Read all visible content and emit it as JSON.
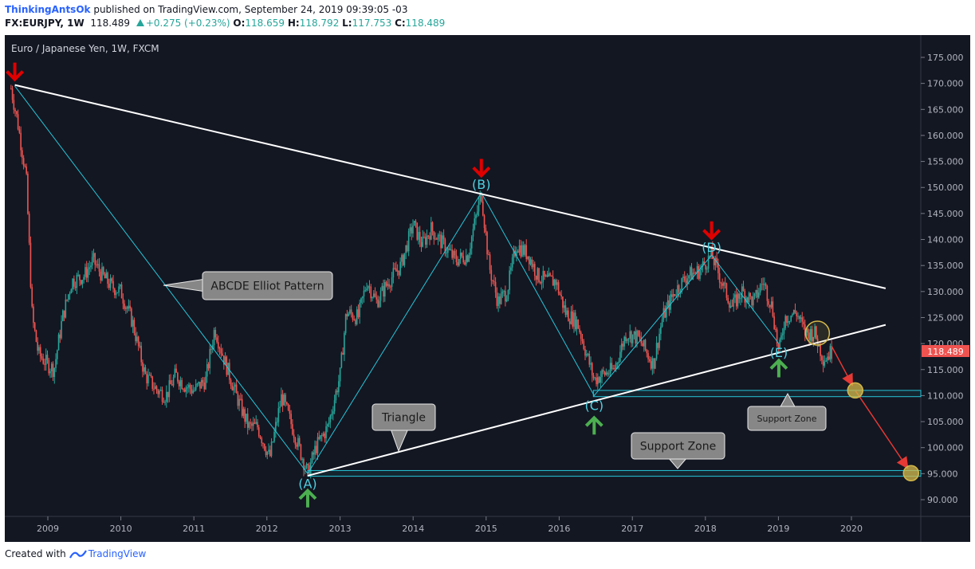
{
  "header": {
    "author": "ThinkingAntsOk",
    "published": " published on TradingView.com, September 24, 2019 09:39:05 -03",
    "symbol": "FX:EURJPY, 1W",
    "last": "118.489",
    "change": "+0.275 (+0.23%)",
    "o_label": "O:",
    "o_value": "118.659",
    "h_label": "H:",
    "h_value": "118.792",
    "l_label": "L:",
    "l_value": "117.753",
    "c_label": "C:",
    "c_value": "118.489"
  },
  "footer": {
    "created_with": "Created with",
    "brand": "TradingView"
  },
  "colors": {
    "background": "#131722",
    "candle_up": "#26a69a",
    "candle_down": "#ef5350",
    "trendline": "#ffffff",
    "pattern_line": "#26c6da",
    "arrow_down": "#e00000",
    "arrow_up": "#4caf50",
    "projection": "#e53935",
    "circle": "#d4b84a"
  },
  "chart_data": {
    "type": "candlestick",
    "title": "Euro / Japanese Yen, 1W, FXCM",
    "ylim": [
      86,
      179
    ],
    "y_ticks": [
      "175.000",
      "170.000",
      "165.000",
      "160.000",
      "155.000",
      "150.000",
      "145.000",
      "140.000",
      "135.000",
      "130.000",
      "125.000",
      "120.000",
      "115.000",
      "110.000",
      "105.000",
      "100.000",
      "95.000",
      "90.000"
    ],
    "x_ticks": [
      "2009",
      "2010",
      "2011",
      "2012",
      "2013",
      "2014",
      "2015",
      "2016",
      "2017",
      "2018",
      "2019",
      "2020"
    ],
    "last_price_label": "118.489",
    "price_path": [
      [
        "2008-07-01",
        169
      ],
      [
        "2008-08-01",
        163
      ],
      [
        "2008-09-15",
        152
      ],
      [
        "2008-10-15",
        125
      ],
      [
        "2008-11-15",
        118
      ],
      [
        "2008-12-31",
        116
      ],
      [
        "2009-02-01",
        115
      ],
      [
        "2009-03-15",
        125
      ],
      [
        "2009-05-01",
        132
      ],
      [
        "2009-07-01",
        133
      ],
      [
        "2009-08-15",
        136
      ],
      [
        "2009-10-01",
        133
      ],
      [
        "2009-11-15",
        131
      ],
      [
        "2010-01-01",
        130
      ],
      [
        "2010-03-01",
        124
      ],
      [
        "2010-05-01",
        114
      ],
      [
        "2010-07-01",
        111
      ],
      [
        "2010-08-15",
        110
      ],
      [
        "2010-10-01",
        114
      ],
      [
        "2010-11-15",
        112
      ],
      [
        "2011-01-01",
        111
      ],
      [
        "2011-03-01",
        113
      ],
      [
        "2011-04-15",
        123
      ],
      [
        "2011-06-01",
        117
      ],
      [
        "2011-08-01",
        110
      ],
      [
        "2011-10-01",
        104
      ],
      [
        "2011-11-15",
        104
      ],
      [
        "2012-01-15",
        98
      ],
      [
        "2012-03-15",
        110
      ],
      [
        "2012-05-15",
        103
      ],
      [
        "2012-07-23",
        95
      ],
      [
        "2012-09-01",
        100
      ],
      [
        "2012-11-01",
        104
      ],
      [
        "2013-01-01",
        114
      ],
      [
        "2013-02-01",
        126
      ],
      [
        "2013-04-01",
        125
      ],
      [
        "2013-05-15",
        132
      ],
      [
        "2013-07-01",
        128
      ],
      [
        "2013-09-01",
        132
      ],
      [
        "2013-11-01",
        135
      ],
      [
        "2014-01-01",
        143
      ],
      [
        "2014-02-15",
        139
      ],
      [
        "2014-04-01",
        142
      ],
      [
        "2014-06-01",
        139
      ],
      [
        "2014-08-01",
        136
      ],
      [
        "2014-10-01",
        137
      ],
      [
        "2014-12-08",
        149
      ],
      [
        "2015-01-15",
        135
      ],
      [
        "2015-03-01",
        128
      ],
      [
        "2015-04-15",
        130
      ],
      [
        "2015-06-01",
        139
      ],
      [
        "2015-08-01",
        137
      ],
      [
        "2015-09-15",
        133
      ],
      [
        "2015-11-01",
        132
      ],
      [
        "2015-12-15",
        132
      ],
      [
        "2016-02-01",
        126
      ],
      [
        "2016-04-01",
        124
      ],
      [
        "2016-06-24",
        113
      ],
      [
        "2016-08-01",
        114
      ],
      [
        "2016-10-01",
        115
      ],
      [
        "2016-12-01",
        122
      ],
      [
        "2017-02-01",
        121
      ],
      [
        "2017-04-15",
        116
      ],
      [
        "2017-06-01",
        125
      ],
      [
        "2017-08-01",
        130
      ],
      [
        "2017-10-01",
        133
      ],
      [
        "2017-12-01",
        134
      ],
      [
        "2018-02-01",
        137
      ],
      [
        "2018-04-01",
        131
      ],
      [
        "2018-05-15",
        127
      ],
      [
        "2018-07-01",
        130
      ],
      [
        "2018-09-01",
        128
      ],
      [
        "2018-10-15",
        132
      ],
      [
        "2018-12-01",
        127
      ],
      [
        "2019-01-03",
        118
      ],
      [
        "2019-02-01",
        125
      ],
      [
        "2019-04-01",
        126
      ],
      [
        "2019-05-15",
        122
      ],
      [
        "2019-07-01",
        122
      ],
      [
        "2019-08-15",
        117
      ],
      [
        "2019-09-24",
        118.489
      ]
    ],
    "pattern_waves": [
      {
        "label": "(A)",
        "date": "2012-07-23",
        "price": 95
      },
      {
        "label": "(B)",
        "date": "2014-12-08",
        "price": 149
      },
      {
        "label": "(C)",
        "date": "2016-06-24",
        "price": 110
      },
      {
        "label": "(D)",
        "date": "2018-02-01",
        "price": 137
      },
      {
        "label": "(E)",
        "date": "2019-01-03",
        "price": 120
      }
    ],
    "wave_start": {
      "date": "2008-07-20",
      "price": 169.5
    },
    "trendlines": [
      {
        "name": "upper-resistance",
        "from": [
          "2008-07-20",
          169.7
        ],
        "to": [
          "2020-06-20",
          130.6
        ]
      },
      {
        "name": "lower-support",
        "from": [
          "2012-07-23",
          94.6
        ],
        "to": [
          "2020-06-20",
          123.6
        ]
      }
    ],
    "support_zones": [
      {
        "label": "Support Zone",
        "from": "2016-06-20",
        "y_high": 111.0,
        "y_low": 109.8
      },
      {
        "label": "Support Zone",
        "from": "2012-07-23",
        "y_high": 95.6,
        "y_low": 94.5
      }
    ],
    "projection": [
      [
        "2019-09-24",
        119.5
      ],
      [
        "2020-01-20",
        111.0
      ],
      [
        "2020-10-25",
        95.1
      ]
    ],
    "circles": [
      [
        "2019-07-15",
        122.0
      ],
      [
        "2020-01-20",
        111.0
      ],
      [
        "2020-10-25",
        95.1
      ]
    ],
    "down_arrows": [
      [
        "2008-07-20",
        172
      ],
      [
        "2014-12-08",
        153.5
      ],
      [
        "2018-02-01",
        141.5
      ]
    ],
    "up_arrows": [
      [
        "2012-07-23",
        90.5
      ],
      [
        "2016-06-24",
        104.5
      ],
      [
        "2019-01-03",
        115.5
      ]
    ],
    "callouts": {
      "elliot": "ABCDE Elliot Pattern",
      "triangle": "Triangle",
      "support_big": "Support Zone",
      "support_small": "Support Zone"
    }
  }
}
